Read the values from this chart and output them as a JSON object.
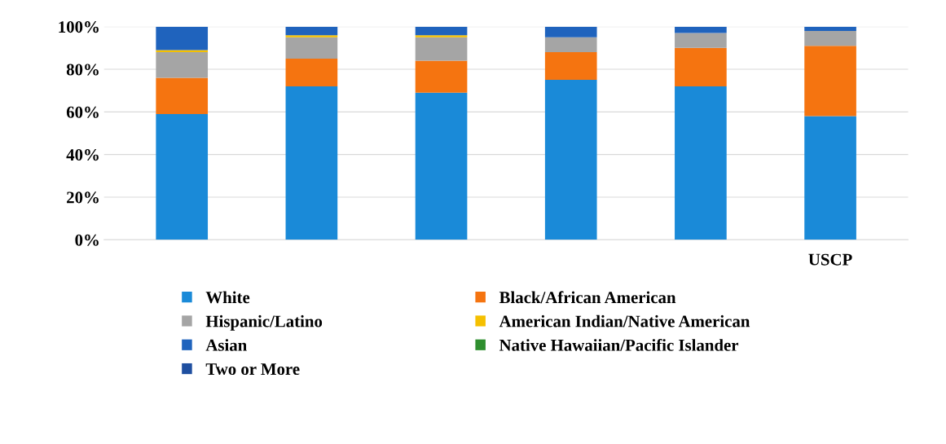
{
  "chart_data": {
    "type": "bar",
    "stacked": true,
    "categories": [
      null,
      null,
      null,
      null,
      null,
      "USCP"
    ],
    "series": [
      {
        "name": "White",
        "color": "#1a8ad8",
        "values": [
          59,
          72,
          69,
          75,
          72,
          58
        ]
      },
      {
        "name": "Black/African American",
        "color": "#f57410",
        "values": [
          17,
          13,
          15,
          13,
          18,
          33
        ]
      },
      {
        "name": "Hispanic/Latino",
        "color": "#a5a5a5",
        "values": [
          12,
          10,
          11,
          7,
          7,
          7
        ]
      },
      {
        "name": "American Indian/Native American",
        "color": "#f5c000",
        "values": [
          1,
          1,
          1,
          0,
          0,
          0
        ]
      },
      {
        "name": "Asian",
        "color": "#1f63bd",
        "values": [
          11,
          4,
          4,
          5,
          3,
          2
        ]
      },
      {
        "name": "Native Hawaiian/Pacific Islander",
        "color": "#2f8f2f",
        "values": [
          0,
          0,
          0,
          0,
          0,
          0
        ]
      },
      {
        "name": "Two or More",
        "color": "#1f4fa0",
        "values": [
          0,
          0,
          0,
          0,
          0,
          0
        ]
      }
    ],
    "ylim": [
      0,
      100
    ],
    "yticks": [
      {
        "value": 0,
        "label": "0%"
      },
      {
        "value": 20,
        "label": "20%"
      },
      {
        "value": 40,
        "label": "40%"
      },
      {
        "value": 60,
        "label": "60%"
      },
      {
        "value": 80,
        "label": "80%"
      },
      {
        "value": 100,
        "label": "100%"
      }
    ],
    "grid": "y",
    "legend": "bottom"
  }
}
